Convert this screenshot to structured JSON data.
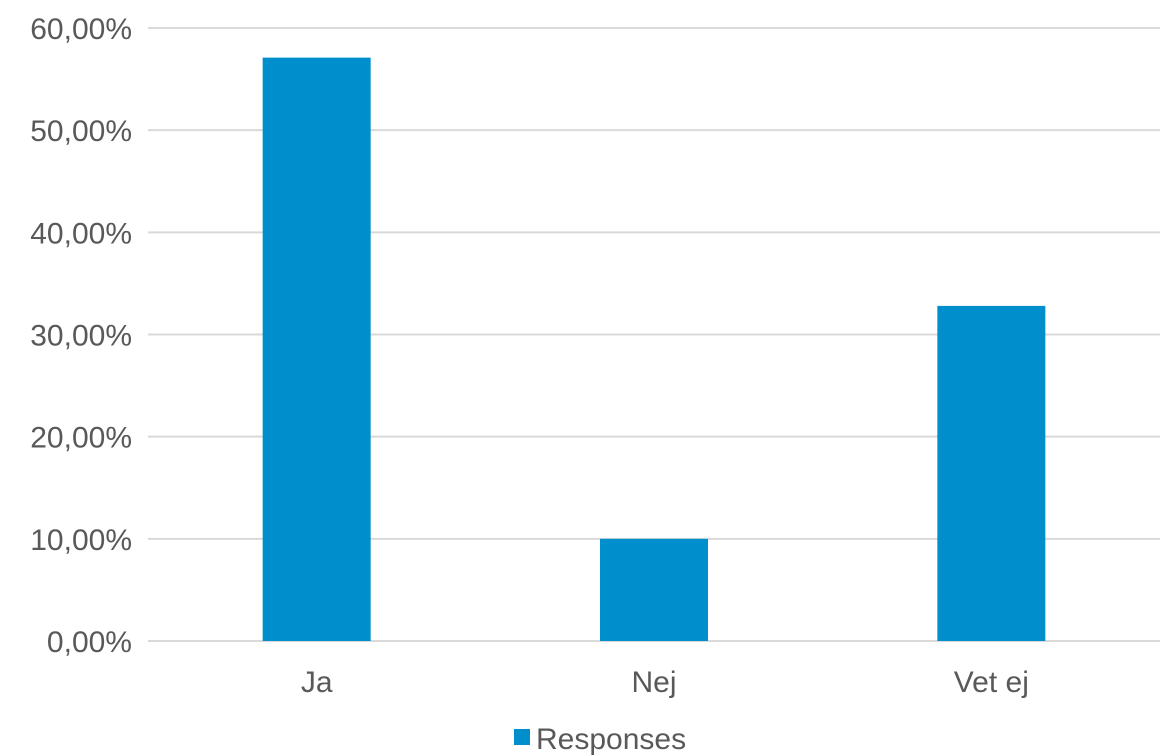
{
  "chart_data": {
    "type": "bar",
    "categories": [
      "Ja",
      "Nej",
      "Vet ej"
    ],
    "series": [
      {
        "name": "Responses",
        "values": [
          0.571,
          0.1,
          0.328
        ]
      }
    ],
    "ylim": [
      0,
      0.6
    ],
    "yticks": [
      0,
      0.1,
      0.2,
      0.3,
      0.4,
      0.5,
      0.6
    ],
    "ytick_labels": [
      "0,00%",
      "10,00%",
      "20,00%",
      "30,00%",
      "40,00%",
      "50,00%",
      "60,00%"
    ],
    "grid": true,
    "legend_position": "bottom",
    "colors": {
      "bar": "#008FCC",
      "grid": "#D9D9D9",
      "text": "#595959"
    }
  }
}
